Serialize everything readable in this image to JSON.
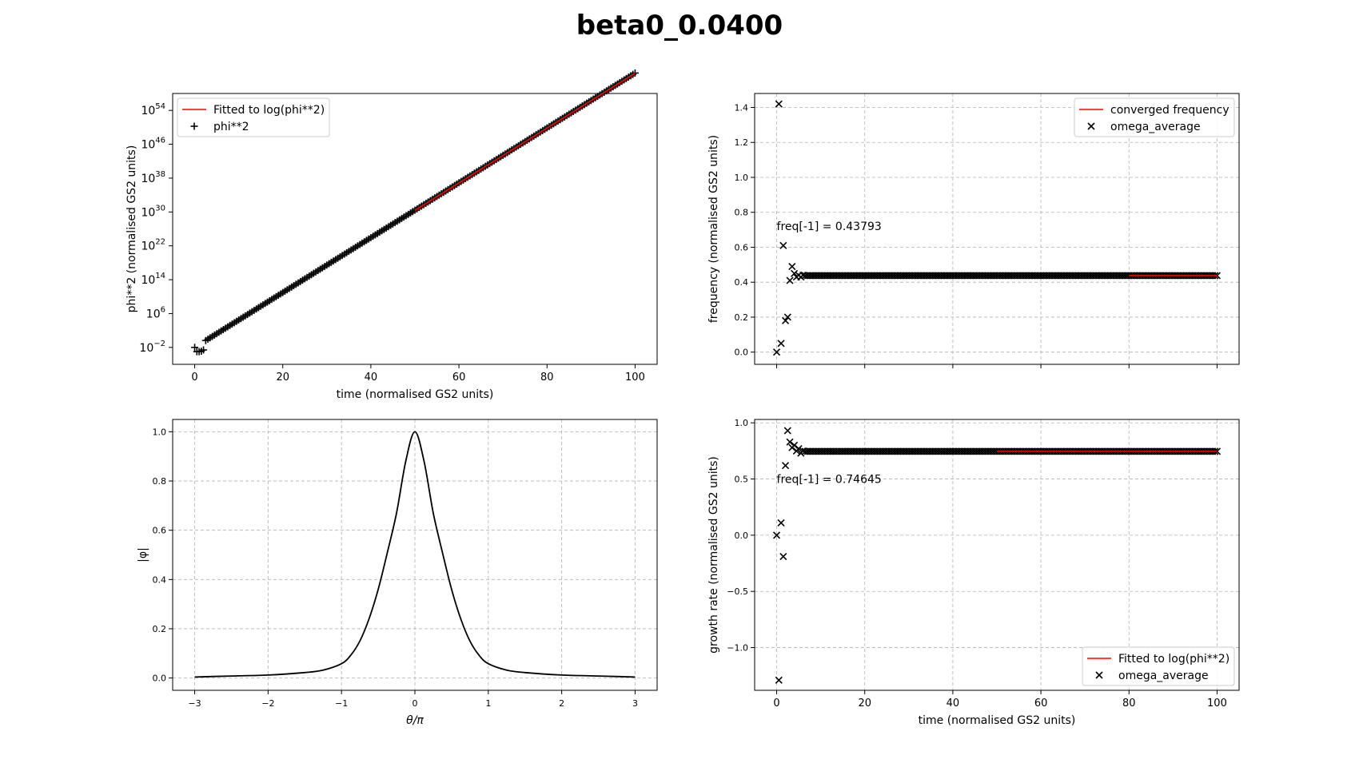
{
  "figure": {
    "suptitle": "beta0_0.0400"
  },
  "colors": {
    "fit": "#ff0000",
    "markers": "#000000",
    "grid": "#b0b0b0",
    "background": "#ffffff"
  },
  "chart_data": [
    {
      "id": "phi2",
      "type": "scatter",
      "yscale": "log",
      "xlabel": "time (normalised GS2 units)",
      "ylabel": "phi**2 (normalised GS2 units)",
      "xlim": [
        -5,
        105
      ],
      "ylim_log10": [
        -6,
        58
      ],
      "xticks": [
        0,
        20,
        40,
        60,
        80,
        100
      ],
      "xtick_labels": [
        "0",
        "20",
        "40",
        "60",
        "80",
        "100"
      ],
      "yticks_log10": [
        -2,
        6,
        14,
        22,
        30,
        38,
        46,
        54
      ],
      "ytick_labels": [
        {
          "base": "10",
          "exp": "−2"
        },
        {
          "base": "10",
          "exp": "6"
        },
        {
          "base": "10",
          "exp": "14"
        },
        {
          "base": "10",
          "exp": "22"
        },
        {
          "base": "10",
          "exp": "30"
        },
        {
          "base": "10",
          "exp": "38"
        },
        {
          "base": "10",
          "exp": "46"
        },
        {
          "base": "10",
          "exp": "54"
        }
      ],
      "grid": false,
      "legend_position": "upper-left",
      "legend": [
        {
          "label": "Fitted to log(phi**2)",
          "kind": "line",
          "color": "#ff0000"
        },
        {
          "label": "phi**2",
          "kind": "plus",
          "color": "#000000"
        }
      ],
      "series": [
        {
          "name": "phi**2",
          "marker": "plus",
          "x_start": 0,
          "x_end": 100,
          "n_points": 200,
          "log10_y_model": {
            "slope": 0.6483,
            "intercept": -2.0,
            "initial_points": [
              [
                0,
                -2.0
              ],
              [
                0.5,
                -3.0
              ],
              [
                1.0,
                -3.0
              ],
              [
                1.5,
                -2.9
              ],
              [
                2.0,
                -2.6
              ]
            ]
          }
        },
        {
          "name": "Fitted to log(phi**2)",
          "kind": "line",
          "x": [
            50,
            100
          ],
          "log10_y": [
            30.4,
            62.8
          ]
        }
      ]
    },
    {
      "id": "frequency",
      "type": "scatter",
      "xlabel": "",
      "ylabel": "frequency (normalised GS2 units)",
      "xlim": [
        -5,
        105
      ],
      "ylim": [
        -0.07,
        1.48
      ],
      "xticks": [
        0,
        20,
        40,
        60,
        80,
        100
      ],
      "show_xtick_labels": false,
      "yticks": [
        0.0,
        0.2,
        0.4,
        0.6,
        0.8,
        1.0,
        1.2,
        1.4
      ],
      "ytick_labels": [
        "0.0",
        "0.2",
        "0.4",
        "0.6",
        "0.8",
        "1.0",
        "1.2",
        "1.4"
      ],
      "grid": true,
      "legend_position": "upper-right",
      "legend": [
        {
          "label": "converged frequency",
          "kind": "line",
          "color": "#ff0000"
        },
        {
          "label": "omega_average",
          "kind": "x",
          "color": "#000000"
        }
      ],
      "annotation": {
        "text": "freq[-1] = 0.43793",
        "x": 0,
        "y": 0.72
      },
      "series": [
        {
          "name": "omega_average",
          "marker": "x",
          "points": [
            [
              0,
              0.0
            ],
            [
              0.5,
              1.42
            ],
            [
              1.0,
              0.05
            ],
            [
              1.5,
              0.61
            ],
            [
              2.0,
              0.18
            ],
            [
              2.5,
              0.2
            ],
            [
              3.0,
              0.41
            ],
            [
              3.5,
              0.49
            ],
            [
              4.0,
              0.45
            ],
            [
              4.5,
              0.43
            ],
            [
              5.0,
              0.44
            ],
            [
              5.5,
              0.43
            ],
            [
              6.0,
              0.44
            ]
          ],
          "steady": {
            "x_start": 6.5,
            "x_end": 100,
            "step": 0.5,
            "value": 0.43793
          }
        },
        {
          "name": "converged frequency",
          "kind": "line",
          "x": [
            80,
            100
          ],
          "y": [
            0.43793,
            0.43793
          ]
        }
      ]
    },
    {
      "id": "eigenfunction",
      "type": "line",
      "xlabel": "θ/π",
      "ylabel": "|φ|",
      "xlim": [
        -3.3,
        3.3
      ],
      "ylim": [
        -0.05,
        1.05
      ],
      "xticks": [
        -3,
        -2,
        -1,
        0,
        1,
        2,
        3
      ],
      "xtick_labels": [
        "−3",
        "−2",
        "−1",
        "0",
        "1",
        "2",
        "3"
      ],
      "yticks": [
        0.0,
        0.2,
        0.4,
        0.6,
        0.8,
        1.0
      ],
      "ytick_labels": [
        "0.0",
        "0.2",
        "0.4",
        "0.6",
        "0.8",
        "1.0"
      ],
      "grid": true,
      "series": [
        {
          "x": [
            -3.0,
            -2.5,
            -2.0,
            -1.5,
            -1.25,
            -1.0,
            -0.875,
            -0.75,
            -0.625,
            -0.5,
            -0.375,
            -0.25,
            -0.125,
            0.0,
            0.125,
            0.25,
            0.375,
            0.5,
            0.625,
            0.75,
            0.875,
            1.0,
            1.25,
            1.5,
            2.0,
            2.5,
            3.0
          ],
          "y": [
            0.004,
            0.008,
            0.012,
            0.022,
            0.032,
            0.058,
            0.092,
            0.15,
            0.24,
            0.36,
            0.51,
            0.67,
            0.88,
            1.0,
            0.88,
            0.67,
            0.51,
            0.36,
            0.24,
            0.15,
            0.092,
            0.058,
            0.032,
            0.022,
            0.012,
            0.008,
            0.004
          ]
        }
      ]
    },
    {
      "id": "growth",
      "type": "scatter",
      "xlabel": "time (normalised GS2 units)",
      "ylabel": "growth rate (normalised GS2 units)",
      "xlim": [
        -5,
        105
      ],
      "ylim": [
        -1.38,
        1.03
      ],
      "xticks": [
        0,
        20,
        40,
        60,
        80,
        100
      ],
      "xtick_labels": [
        "0",
        "20",
        "40",
        "60",
        "80",
        "100"
      ],
      "yticks": [
        -1.0,
        -0.5,
        0.0,
        0.5,
        1.0
      ],
      "ytick_labels": [
        "−1.0",
        "−0.5",
        "0.0",
        "0.5",
        "1.0"
      ],
      "grid": true,
      "legend_position": "lower-right",
      "legend": [
        {
          "label": "Fitted to log(phi**2)",
          "kind": "line",
          "color": "#ff0000"
        },
        {
          "label": "omega_average",
          "kind": "x",
          "color": "#000000"
        }
      ],
      "annotation": {
        "text": "freq[-1] = 0.74645",
        "x": 0,
        "y": 0.5
      },
      "series": [
        {
          "name": "omega_average",
          "marker": "x",
          "points": [
            [
              0,
              0.0
            ],
            [
              0.5,
              -1.29
            ],
            [
              1.0,
              0.11
            ],
            [
              1.5,
              -0.19
            ],
            [
              2.0,
              0.62
            ],
            [
              2.5,
              0.93
            ],
            [
              3.0,
              0.83
            ],
            [
              3.5,
              0.78
            ],
            [
              4.0,
              0.8
            ],
            [
              4.5,
              0.75
            ],
            [
              5.0,
              0.77
            ],
            [
              5.5,
              0.73
            ],
            [
              6.0,
              0.75
            ]
          ],
          "steady": {
            "x_start": 6.5,
            "x_end": 100,
            "step": 0.5,
            "value": 0.74645
          }
        },
        {
          "name": "Fitted to log(phi**2)",
          "kind": "line",
          "x": [
            50,
            100
          ],
          "y": [
            0.74645,
            0.74645
          ]
        }
      ]
    }
  ]
}
